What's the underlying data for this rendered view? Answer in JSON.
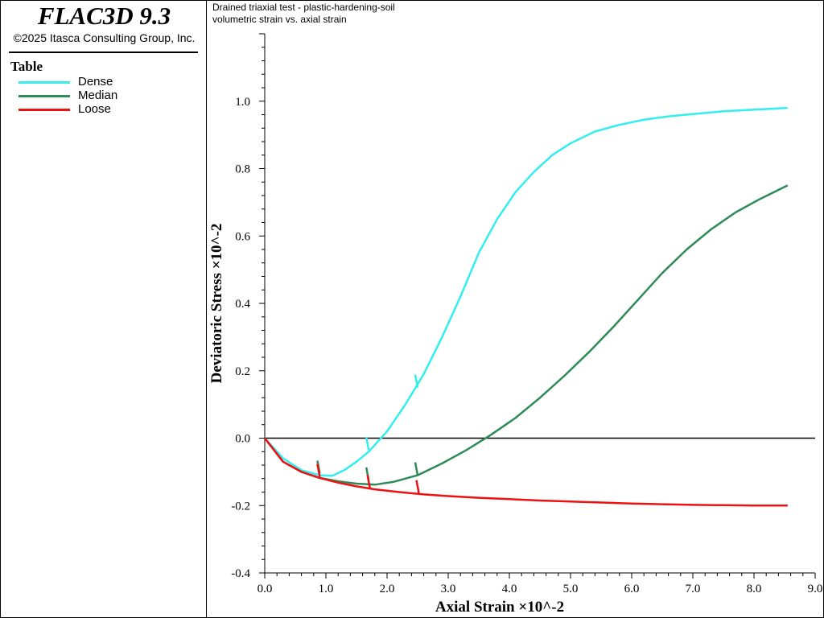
{
  "app": {
    "title": "FLAC3D 9.3",
    "copyright": "©2025 Itasca Consulting Group, Inc."
  },
  "legend": {
    "heading": "Table",
    "items": [
      {
        "label": "Dense",
        "color": "#33eeee"
      },
      {
        "label": "Median",
        "color": "#2e8b57"
      },
      {
        "label": "Loose",
        "color": "#ee1111"
      }
    ]
  },
  "plot_header": {
    "line1": "Drained triaxial test - plastic-hardening-soil",
    "line2": "volumetric strain vs. axial strain"
  },
  "chart_data": {
    "type": "line",
    "xlabel": "Axial Strain ×10^-2",
    "ylabel": "Deviatoric Stress ×10^-2",
    "xlim": [
      0,
      9
    ],
    "ylim": [
      -0.4,
      1.2
    ],
    "xticks": [
      "0.0",
      "1.0",
      "2.0",
      "3.0",
      "4.0",
      "5.0",
      "6.0",
      "7.0",
      "8.0",
      "9.0"
    ],
    "yticks": [
      "-0.4",
      "-0.2",
      "0.0",
      "0.2",
      "0.4",
      "0.6",
      "0.8",
      "1.0"
    ],
    "zero_line": true,
    "grid": false,
    "series": [
      {
        "name": "Dense",
        "color": "#33eeee",
        "x": [
          0,
          0.3,
          0.6,
          0.9,
          1.1,
          1.3,
          1.5,
          1.7,
          2.0,
          2.3,
          2.6,
          2.9,
          3.2,
          3.5,
          3.8,
          4.1,
          4.4,
          4.7,
          5.0,
          5.4,
          5.8,
          6.2,
          6.6,
          7.0,
          7.5,
          8.0,
          8.55
        ],
        "y": [
          0,
          -0.06,
          -0.095,
          -0.11,
          -0.112,
          -0.095,
          -0.07,
          -0.04,
          0.02,
          0.1,
          0.19,
          0.3,
          0.42,
          0.55,
          0.65,
          0.73,
          0.79,
          0.84,
          0.875,
          0.91,
          0.93,
          0.945,
          0.955,
          0.962,
          0.97,
          0.975,
          0.98
        ]
      },
      {
        "name": "Median",
        "color": "#2e8b57",
        "x": [
          0,
          0.3,
          0.6,
          0.9,
          1.2,
          1.5,
          1.8,
          2.1,
          2.5,
          2.9,
          3.3,
          3.7,
          4.1,
          4.5,
          4.9,
          5.3,
          5.7,
          6.1,
          6.5,
          6.9,
          7.3,
          7.7,
          8.1,
          8.55
        ],
        "y": [
          0,
          -0.07,
          -0.1,
          -0.118,
          -0.128,
          -0.135,
          -0.138,
          -0.13,
          -0.11,
          -0.075,
          -0.035,
          0.01,
          0.06,
          0.12,
          0.185,
          0.255,
          0.33,
          0.41,
          0.49,
          0.56,
          0.62,
          0.67,
          0.71,
          0.75
        ]
      },
      {
        "name": "Loose",
        "color": "#ee1111",
        "x": [
          0,
          0.3,
          0.6,
          0.9,
          1.2,
          1.5,
          1.8,
          2.2,
          2.6,
          3.0,
          3.5,
          4.0,
          4.5,
          5.0,
          5.5,
          6.0,
          6.5,
          7.0,
          7.5,
          8.0,
          8.55
        ],
        "y": [
          0,
          -0.07,
          -0.1,
          -0.118,
          -0.132,
          -0.143,
          -0.152,
          -0.16,
          -0.167,
          -0.172,
          -0.177,
          -0.181,
          -0.185,
          -0.188,
          -0.191,
          -0.194,
          -0.196,
          -0.198,
          -0.199,
          -0.2,
          -0.2
        ]
      }
    ],
    "markers": [
      {
        "series": "Dense",
        "x": 1.7,
        "y": -0.035,
        "dir": "up"
      },
      {
        "series": "Dense",
        "x": 2.5,
        "y": 0.15,
        "dir": "up"
      },
      {
        "series": "Median",
        "x": 0.9,
        "y": -0.105,
        "dir": "up"
      },
      {
        "series": "Median",
        "x": 1.7,
        "y": -0.125,
        "dir": "up"
      },
      {
        "series": "Median",
        "x": 2.5,
        "y": -0.11,
        "dir": "up"
      },
      {
        "series": "Loose",
        "x": 0.9,
        "y": -0.115,
        "dir": "up"
      },
      {
        "series": "Loose",
        "x": 1.72,
        "y": -0.148,
        "dir": "up"
      },
      {
        "series": "Loose",
        "x": 2.52,
        "y": -0.163,
        "dir": "up"
      }
    ]
  }
}
